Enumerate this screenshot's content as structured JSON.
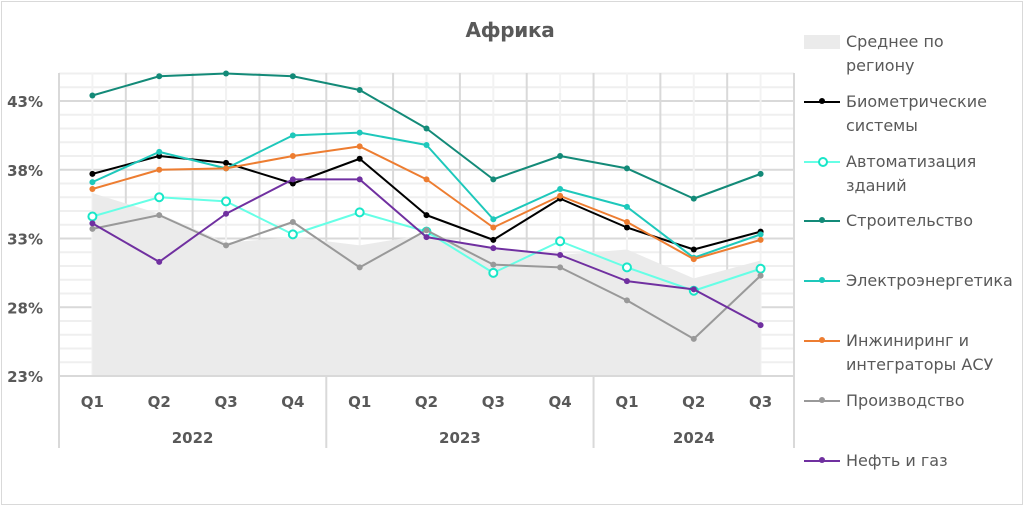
{
  "chart_data": {
    "type": "line",
    "title": "Африка",
    "xlabel": "",
    "ylabel": "",
    "ylim": [
      23,
      45
    ],
    "y_ticks": [
      "23%",
      "28%",
      "33%",
      "38%",
      "43%"
    ],
    "y_tick_values": [
      23,
      28,
      33,
      38,
      43
    ],
    "grid": true,
    "legend_position": "right",
    "categories": [
      "Q1",
      "Q2",
      "Q3",
      "Q4",
      "Q1",
      "Q2",
      "Q3",
      "Q4",
      "Q1",
      "Q2",
      "Q3"
    ],
    "year_groups": [
      {
        "label": "2022",
        "count": 4
      },
      {
        "label": "2023",
        "count": 4
      },
      {
        "label": "2024",
        "count": 3
      }
    ],
    "area": {
      "name": "Среднее по региону",
      "color": "#ebebeb",
      "values": [
        36.3,
        34.8,
        32.7,
        33.1,
        32.5,
        33.3,
        32.2,
        31.8,
        32.2,
        30.1,
        31.4
      ]
    },
    "series": [
      {
        "name": "Биометрические системы",
        "color": "#000000",
        "marker": "filled",
        "values": [
          37.7,
          39.0,
          38.5,
          37.0,
          38.8,
          34.7,
          32.9,
          35.9,
          33.8,
          32.2,
          33.5
        ]
      },
      {
        "name": "Автоматизация зданий",
        "color": "#66ffe6",
        "marker": "open",
        "marker_color": "#19e6c8",
        "values": [
          34.6,
          36.0,
          35.7,
          33.3,
          34.9,
          33.5,
          30.5,
          32.8,
          30.9,
          29.2,
          30.8
        ]
      },
      {
        "name": "Строительство",
        "color": "#138a78",
        "marker": "filled",
        "values": [
          43.4,
          44.8,
          45.0,
          44.8,
          43.8,
          41.0,
          37.3,
          39.0,
          38.1,
          35.9,
          37.7
        ]
      },
      {
        "name": "Электроэнергетика",
        "color": "#1ec8bb",
        "marker": "filled",
        "values": [
          37.1,
          39.3,
          38.1,
          40.5,
          40.7,
          39.8,
          34.4,
          36.6,
          35.3,
          31.6,
          33.3
        ]
      },
      {
        "name": "Инжиниринг и интеграторы АСУ",
        "color": "#ed7d31",
        "marker": "filled",
        "values": [
          36.6,
          38.0,
          38.1,
          39.0,
          39.7,
          37.3,
          33.8,
          36.1,
          34.2,
          31.5,
          32.9
        ]
      },
      {
        "name": "Производство",
        "color": "#999999",
        "marker": "filled",
        "values": [
          33.7,
          34.7,
          32.5,
          34.2,
          30.9,
          33.6,
          31.1,
          30.9,
          28.5,
          25.7,
          30.3
        ]
      },
      {
        "name": "Нефть и газ",
        "color": "#7030a0",
        "marker": "filled",
        "values": [
          34.1,
          31.3,
          34.8,
          37.3,
          37.3,
          33.1,
          32.3,
          31.8,
          29.9,
          29.3,
          26.7
        ]
      }
    ]
  },
  "legend": {
    "items": [
      {
        "line1": "Среднее по",
        "line2": "региону"
      },
      {
        "line1": "Биометрические",
        "line2": "системы"
      },
      {
        "line1": "Автоматизация",
        "line2": "зданий"
      },
      {
        "line1": "Строительство",
        "line2": ""
      },
      {
        "line1": "Электроэнергетика",
        "line2": ""
      },
      {
        "line1": "Инжиниринг и",
        "line2": "интеграторы АСУ"
      },
      {
        "line1": "Производство",
        "line2": ""
      },
      {
        "line1": "Нефть и газ",
        "line2": ""
      }
    ]
  }
}
